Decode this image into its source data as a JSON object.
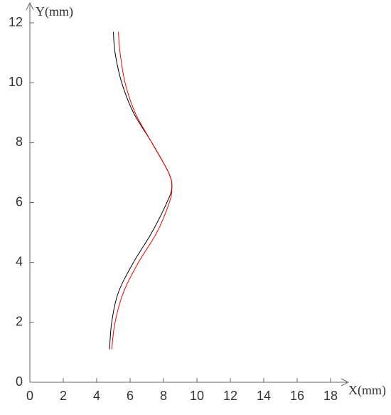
{
  "chart_data": {
    "type": "line",
    "x_label": "X(mm)",
    "y_label": "Y(mm)",
    "xlim": [
      0,
      19
    ],
    "ylim": [
      0,
      12.5
    ],
    "xticks": [
      0,
      2,
      4,
      6,
      8,
      10,
      12,
      14,
      16,
      18
    ],
    "yticks": [
      0,
      2,
      4,
      6,
      8,
      10,
      12
    ],
    "grid": false,
    "series": [
      {
        "color": "#000000",
        "x": [
          4.77,
          4.9,
          5.3,
          6.2,
          7.3,
          8.2,
          8.5,
          8.3,
          7.3,
          6.2,
          5.5,
          5.1,
          5.0
        ],
        "y": [
          1.1,
          2,
          3,
          4,
          5,
          6,
          6.5,
          7,
          8,
          9,
          10,
          11,
          11.7
        ]
      },
      {
        "color": "#ff0000",
        "x": [
          4.9,
          5.1,
          5.6,
          6.5,
          7.6,
          8.35,
          8.5,
          8.3,
          7.3,
          6.3,
          5.7,
          5.4,
          5.3
        ],
        "y": [
          1.1,
          2,
          3,
          4,
          5,
          6,
          6.5,
          7,
          8,
          9,
          10,
          11,
          11.7
        ]
      }
    ]
  }
}
